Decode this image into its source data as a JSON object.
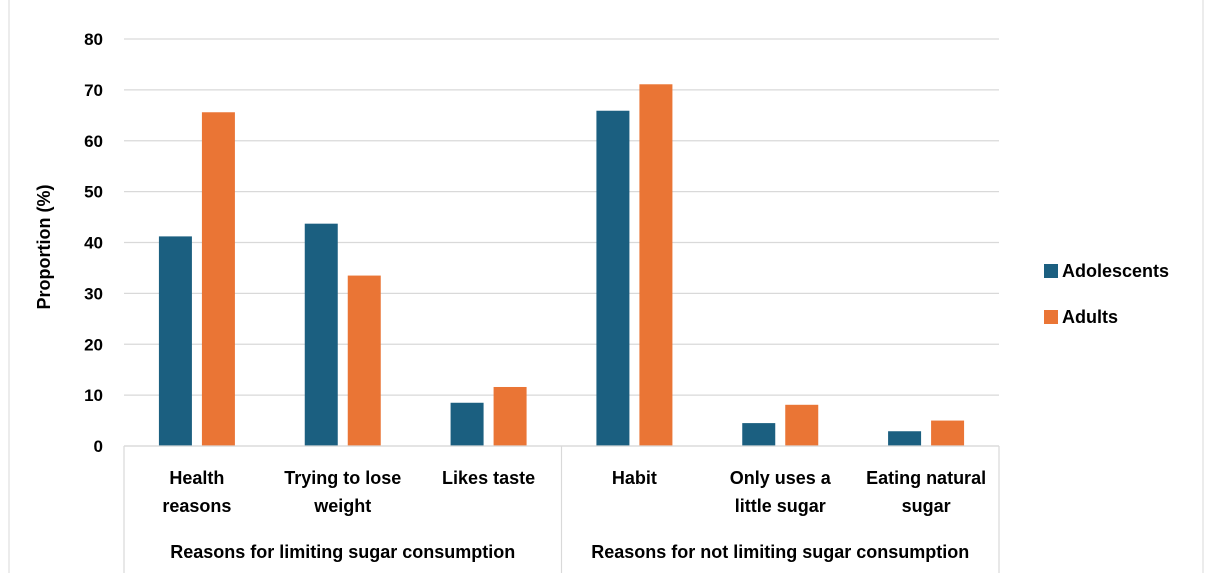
{
  "chart_data": {
    "type": "bar",
    "title": "",
    "xlabel": "",
    "ylabel": "Proportion (%)",
    "ylim": [
      0,
      80
    ],
    "yticks": [
      0,
      10,
      20,
      30,
      40,
      50,
      60,
      70,
      80
    ],
    "grid": true,
    "legend_position": "right",
    "categories": [
      [
        "Health",
        "reasons"
      ],
      [
        "Trying to lose",
        "weight"
      ],
      [
        "Likes taste"
      ],
      [
        "Habit"
      ],
      [
        "Only uses a",
        "little sugar"
      ],
      [
        "Eating natural",
        "sugar"
      ]
    ],
    "groups": [
      {
        "label": "Reasons for limiting sugar consumption",
        "count": 3
      },
      {
        "label": "Reasons for not limiting sugar consumption",
        "count": 3
      }
    ],
    "series": [
      {
        "name": "Adolescents",
        "color": "#1b5f80",
        "values": [
          41.2,
          43.7,
          8.5,
          65.9,
          4.5,
          2.9
        ]
      },
      {
        "name": "Adults",
        "color": "#ea7535",
        "values": [
          65.6,
          33.5,
          11.6,
          71.1,
          8.1,
          5.0
        ]
      }
    ]
  }
}
